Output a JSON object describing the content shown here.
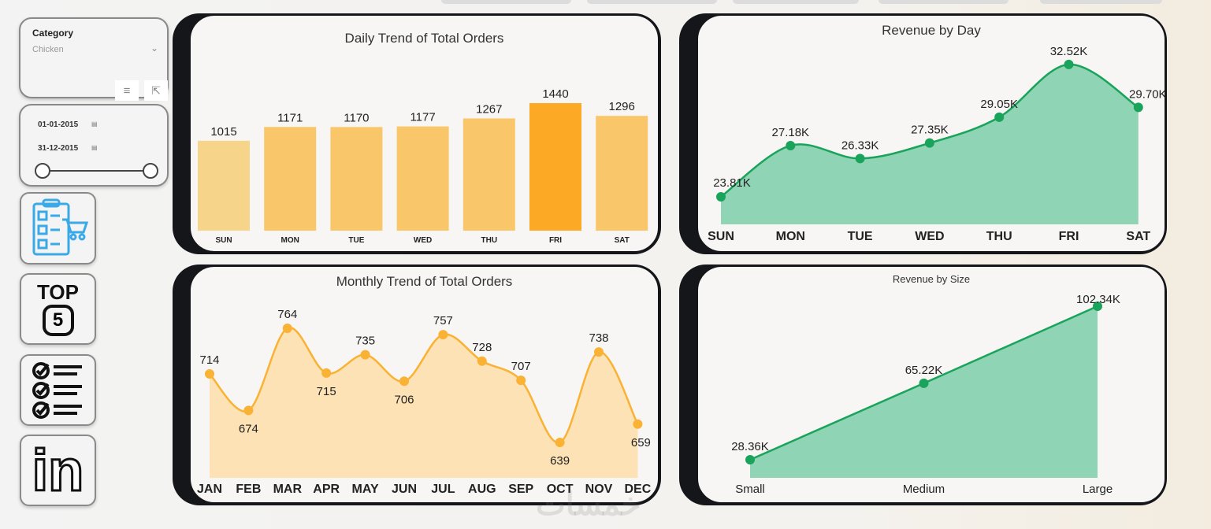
{
  "slicers": {
    "category": {
      "label": "Category",
      "value": "Chicken"
    },
    "date_range": {
      "start": "01-01-2015",
      "end": "31-12-2015"
    }
  },
  "nav_tiles": {
    "top5": {
      "top": "TOP",
      "num": "5"
    },
    "linkedin": {
      "text": "in"
    }
  },
  "watermark": "خمسات",
  "colors": {
    "bar_light": "#f6d58a",
    "bar_mid": "#f9c76a",
    "bar_max": "#fca925",
    "orange_line": "#f9b233",
    "orange_fill": "#fde2b5",
    "green_line": "#1aa35b",
    "green_fill": "#8fd4b4"
  },
  "chart_data": [
    {
      "type": "bar",
      "title": "Daily Trend of Total Orders",
      "categories": [
        "SUN",
        "MON",
        "TUE",
        "WED",
        "THU",
        "FRI",
        "SAT"
      ],
      "values": [
        1015,
        1171,
        1170,
        1177,
        1267,
        1440,
        1296
      ],
      "data_labels": [
        "1015",
        "1171",
        "1170",
        "1177",
        "1267",
        "1440",
        "1296"
      ]
    },
    {
      "type": "area",
      "title": "Revenue by Day",
      "categories": [
        "SUN",
        "MON",
        "TUE",
        "WED",
        "THU",
        "FRI",
        "SAT"
      ],
      "values": [
        23.81,
        27.18,
        26.33,
        27.35,
        29.05,
        32.52,
        29.7
      ],
      "data_labels": [
        "23.81K",
        "27.18K",
        "26.33K",
        "27.35K",
        "29.05K",
        "32.52K",
        "29.70K"
      ]
    },
    {
      "type": "area",
      "title": "Monthly Trend of Total Orders",
      "categories": [
        "JAN",
        "FEB",
        "MAR",
        "APR",
        "MAY",
        "JUN",
        "JUL",
        "AUG",
        "SEP",
        "OCT",
        "NOV",
        "DEC"
      ],
      "values": [
        714,
        674,
        764,
        715,
        735,
        706,
        757,
        728,
        707,
        639,
        738,
        659
      ],
      "data_labels": [
        "714",
        "674",
        "764",
        "715",
        "735",
        "706",
        "757",
        "728",
        "707",
        "639",
        "738",
        "659"
      ]
    },
    {
      "type": "area",
      "title": "Revenue by Size",
      "categories": [
        "Small",
        "Medium",
        "Large"
      ],
      "values": [
        28.36,
        65.22,
        102.34
      ],
      "data_labels": [
        "28.36K",
        "65.22K",
        "102.34K"
      ]
    }
  ]
}
